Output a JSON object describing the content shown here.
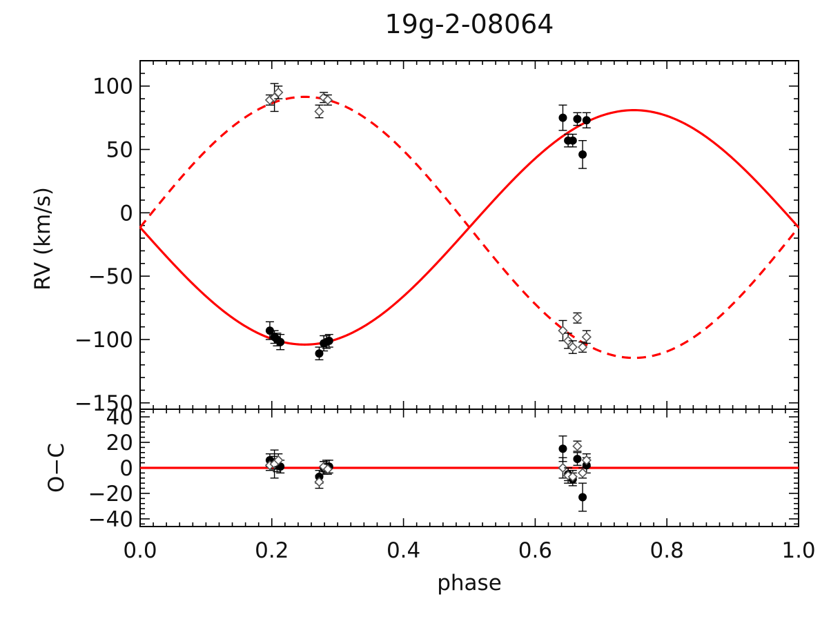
{
  "chart_data": {
    "type": "scatter",
    "title": "19g-2-08064",
    "xlabel": "phase",
    "xlim": [
      0.0,
      1.0
    ],
    "xticks": [
      0.0,
      0.2,
      0.4,
      0.6,
      0.8,
      1.0
    ],
    "xtick_labels": [
      "0.0",
      "0.2",
      "0.4",
      "0.6",
      "0.8",
      "1.0"
    ],
    "colors": {
      "model": "#ff0000",
      "primary": "#000000",
      "secondary": "#555555"
    },
    "panels": [
      {
        "name": "rv",
        "ylabel": "RV (km/s)",
        "ylim": [
          -155,
          120
        ],
        "yticks": [
          100,
          50,
          0,
          -50,
          -100,
          -150
        ],
        "ytick_labels": [
          "100",
          "50",
          "0",
          "−50",
          "−100",
          "−150"
        ],
        "models": [
          {
            "name": "primary-fit",
            "style": "solid",
            "gamma": -11.5,
            "amplitude": 92.5,
            "sign": -1
          },
          {
            "name": "secondary-fit",
            "style": "dashed",
            "gamma": -11.5,
            "amplitude": 103.0,
            "sign": 1
          }
        ],
        "series": [
          {
            "name": "primary",
            "marker": "filled-circle",
            "points": [
              {
                "x": 0.197,
                "y": -93,
                "err": 7
              },
              {
                "x": 0.204,
                "y": -98,
                "err": 5
              },
              {
                "x": 0.208,
                "y": -100,
                "err": 5
              },
              {
                "x": 0.213,
                "y": -102,
                "err": 6
              },
              {
                "x": 0.272,
                "y": -111,
                "err": 5
              },
              {
                "x": 0.279,
                "y": -103,
                "err": 6
              },
              {
                "x": 0.283,
                "y": -102,
                "err": 5
              },
              {
                "x": 0.287,
                "y": -101,
                "err": 5
              },
              {
                "x": 0.642,
                "y": 75,
                "err": 10
              },
              {
                "x": 0.65,
                "y": 57,
                "err": 5
              },
              {
                "x": 0.657,
                "y": 57,
                "err": 5
              },
              {
                "x": 0.664,
                "y": 74,
                "err": 5
              },
              {
                "x": 0.672,
                "y": 46,
                "err": 11
              },
              {
                "x": 0.678,
                "y": 73,
                "err": 6
              }
            ]
          },
          {
            "name": "secondary",
            "marker": "open-diamond",
            "points": [
              {
                "x": 0.197,
                "y": 89,
                "err": 4
              },
              {
                "x": 0.204,
                "y": 91,
                "err": 11
              },
              {
                "x": 0.21,
                "y": 95,
                "err": 5
              },
              {
                "x": 0.272,
                "y": 80,
                "err": 5
              },
              {
                "x": 0.279,
                "y": 91,
                "err": 4
              },
              {
                "x": 0.285,
                "y": 89,
                "err": 4
              },
              {
                "x": 0.642,
                "y": -93,
                "err": 8
              },
              {
                "x": 0.65,
                "y": -101,
                "err": 6
              },
              {
                "x": 0.657,
                "y": -106,
                "err": 5
              },
              {
                "x": 0.664,
                "y": -83,
                "err": 4
              },
              {
                "x": 0.672,
                "y": -106,
                "err": 4
              },
              {
                "x": 0.678,
                "y": -98,
                "err": 5
              }
            ]
          }
        ]
      },
      {
        "name": "residuals",
        "ylabel": "O−C",
        "ylim": [
          -46,
          46
        ],
        "yticks": [
          40,
          20,
          0,
          -20,
          -40
        ],
        "ytick_labels": [
          "40",
          "20",
          "0",
          "−20",
          "−40"
        ],
        "models": [
          {
            "name": "zero-line",
            "style": "solid",
            "gamma": 0,
            "amplitude": 0,
            "sign": 1
          }
        ],
        "series": [
          {
            "name": "primary-residuals",
            "marker": "filled-circle",
            "points": [
              {
                "x": 0.197,
                "y": 6,
                "err": 5
              },
              {
                "x": 0.204,
                "y": 4,
                "err": 5
              },
              {
                "x": 0.208,
                "y": 2,
                "err": 5
              },
              {
                "x": 0.213,
                "y": 1,
                "err": 5
              },
              {
                "x": 0.272,
                "y": -7,
                "err": 5
              },
              {
                "x": 0.279,
                "y": 0,
                "err": 5
              },
              {
                "x": 0.283,
                "y": 1,
                "err": 5
              },
              {
                "x": 0.287,
                "y": 1,
                "err": 5
              },
              {
                "x": 0.642,
                "y": 15,
                "err": 10
              },
              {
                "x": 0.65,
                "y": -5,
                "err": 5
              },
              {
                "x": 0.657,
                "y": -9,
                "err": 5
              },
              {
                "x": 0.664,
                "y": 7,
                "err": 5
              },
              {
                "x": 0.672,
                "y": -23,
                "err": 11
              },
              {
                "x": 0.678,
                "y": 2,
                "err": 6
              }
            ]
          },
          {
            "name": "secondary-residuals",
            "marker": "open-diamond",
            "points": [
              {
                "x": 0.197,
                "y": 2,
                "err": 4
              },
              {
                "x": 0.204,
                "y": 3,
                "err": 11
              },
              {
                "x": 0.21,
                "y": 6,
                "err": 5
              },
              {
                "x": 0.272,
                "y": -11,
                "err": 5
              },
              {
                "x": 0.279,
                "y": 1,
                "err": 4
              },
              {
                "x": 0.285,
                "y": -1,
                "err": 4
              },
              {
                "x": 0.642,
                "y": 0,
                "err": 8
              },
              {
                "x": 0.65,
                "y": -6,
                "err": 6
              },
              {
                "x": 0.657,
                "y": -7,
                "err": 5
              },
              {
                "x": 0.664,
                "y": 17,
                "err": 4
              },
              {
                "x": 0.672,
                "y": -4,
                "err": 4
              },
              {
                "x": 0.678,
                "y": 6,
                "err": 5
              }
            ]
          }
        ]
      }
    ]
  }
}
